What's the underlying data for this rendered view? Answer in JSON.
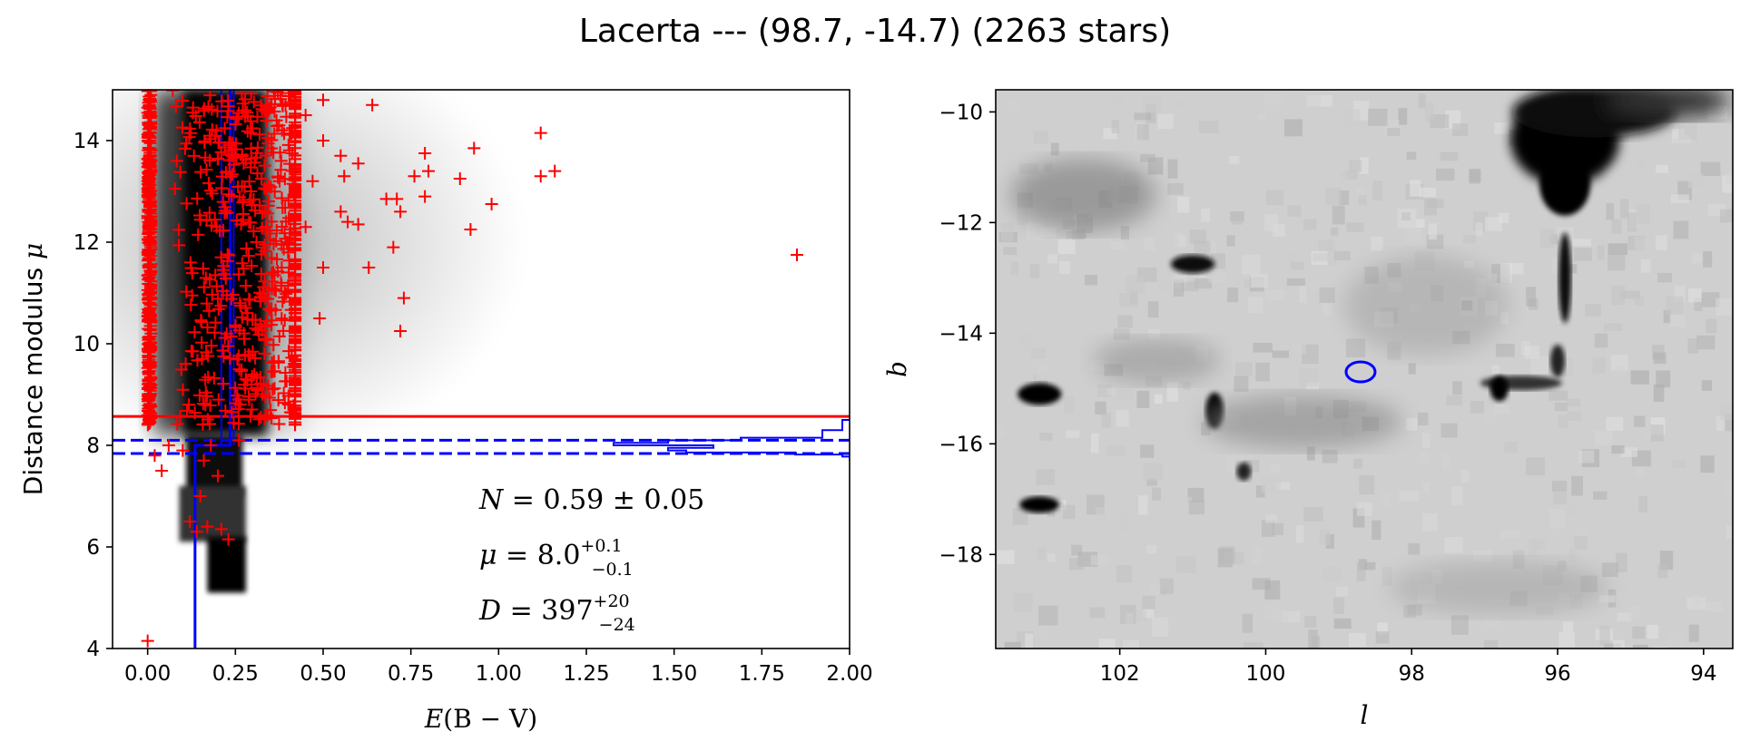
{
  "figure": {
    "title": "Lacerta --- (98.7, -14.7) (2263 stars)"
  },
  "chart_data": [
    {
      "type": "scatter",
      "panel": "left",
      "xlabel_parts": [
        "E",
        "(B − V)"
      ],
      "ylabel_parts": [
        "Distance modulus ",
        "μ"
      ],
      "xlim": [
        -0.1,
        2.0
      ],
      "ylim": [
        4,
        15
      ],
      "xticks": [
        0.0,
        0.25,
        0.5,
        0.75,
        1.0,
        1.25,
        1.5,
        1.75,
        2.0
      ],
      "xtick_labels": [
        "0.00",
        "0.25",
        "0.50",
        "0.75",
        "1.00",
        "1.25",
        "1.50",
        "1.75",
        "2.00"
      ],
      "yticks": [
        4,
        6,
        8,
        10,
        12,
        14
      ],
      "ytick_labels": [
        "4",
        "6",
        "8",
        "10",
        "12",
        "14"
      ],
      "colors": {
        "points": "#ff0000",
        "fit": "#0000ff",
        "cut": "#ff0000"
      },
      "density_background": "grayscale",
      "points_description": "red plus markers, dense cluster at E(B-V) 0-0.4 for mu 8.3-15",
      "sample_points": [
        {
          "x": 1.85,
          "y": 11.75
        },
        {
          "x": 1.12,
          "y": 14.15
        },
        {
          "x": 1.16,
          "y": 13.4
        },
        {
          "x": 1.12,
          "y": 13.3
        },
        {
          "x": 0.93,
          "y": 13.85
        },
        {
          "x": 0.89,
          "y": 13.25
        },
        {
          "x": 0.79,
          "y": 13.75
        },
        {
          "x": 0.8,
          "y": 13.4
        },
        {
          "x": 0.79,
          "y": 12.9
        },
        {
          "x": 0.76,
          "y": 13.3
        },
        {
          "x": 0.71,
          "y": 12.85
        },
        {
          "x": 0.72,
          "y": 12.6
        },
        {
          "x": 0.68,
          "y": 12.85
        },
        {
          "x": 0.98,
          "y": 12.75
        },
        {
          "x": 0.92,
          "y": 12.25
        },
        {
          "x": 0.7,
          "y": 11.9
        },
        {
          "x": 0.63,
          "y": 11.5
        },
        {
          "x": 0.5,
          "y": 11.5
        },
        {
          "x": 0.73,
          "y": 10.9
        },
        {
          "x": 0.72,
          "y": 10.25
        },
        {
          "x": 0.49,
          "y": 10.5
        },
        {
          "x": 0.57,
          "y": 12.4
        },
        {
          "x": 0.6,
          "y": 12.35
        },
        {
          "x": 0.55,
          "y": 12.6
        },
        {
          "x": 0.64,
          "y": 14.7
        },
        {
          "x": 0.5,
          "y": 14.8
        },
        {
          "x": 0.45,
          "y": 14.5
        },
        {
          "x": 0.5,
          "y": 14.0
        },
        {
          "x": 0.55,
          "y": 13.7
        },
        {
          "x": 0.6,
          "y": 13.55
        },
        {
          "x": 0.56,
          "y": 13.3
        },
        {
          "x": 0.47,
          "y": 13.2
        },
        {
          "x": 0.42,
          "y": 12.9
        },
        {
          "x": 0.45,
          "y": 12.3
        },
        {
          "x": 0.4,
          "y": 11.8
        },
        {
          "x": 0.38,
          "y": 11.2
        },
        {
          "x": 0.0,
          "y": 4.15
        },
        {
          "x": 0.04,
          "y": 7.5
        },
        {
          "x": 0.02,
          "y": 7.8
        },
        {
          "x": 0.06,
          "y": 8.0
        },
        {
          "x": 0.12,
          "y": 6.5
        },
        {
          "x": 0.14,
          "y": 6.3
        },
        {
          "x": 0.15,
          "y": 7.0
        },
        {
          "x": 0.17,
          "y": 6.4
        },
        {
          "x": 0.21,
          "y": 6.35
        },
        {
          "x": 0.23,
          "y": 6.15
        },
        {
          "x": 0.2,
          "y": 7.4
        },
        {
          "x": 0.16,
          "y": 7.7
        },
        {
          "x": 0.1,
          "y": 7.9
        },
        {
          "x": 0.18,
          "y": 8.0
        },
        {
          "x": 0.26,
          "y": 8.1
        }
      ],
      "cluster_rows": {
        "mu_min": 8.4,
        "mu_max": 15.0,
        "x_min": 0.0,
        "x_max": 0.42
      },
      "lines": {
        "red_horizontal": 8.57,
        "blue_dashed": [
          7.84,
          8.1
        ],
        "blue_step_left_x": 0.135,
        "blue_step_right_x": 0.235,
        "blue_step_mu": 8.0,
        "blue_band_x": [
          0.21,
          0.245
        ]
      },
      "annotations": [
        {
          "id": "N",
          "parts": [
            "N",
            " = 0.59 ± 0.05"
          ]
        },
        {
          "id": "mu",
          "parts": [
            "μ",
            " = 8.0",
            "+0.1",
            "−0.1"
          ]
        },
        {
          "id": "D",
          "parts": [
            "D",
            " = 397",
            "+20",
            "−24"
          ]
        }
      ]
    },
    {
      "type": "heatmap",
      "panel": "right",
      "xlabel": "l",
      "ylabel": "b",
      "xlim": [
        103.7,
        93.6
      ],
      "ylim": [
        -19.7,
        -9.6
      ],
      "xticks": [
        102,
        100,
        98,
        96,
        94
      ],
      "xtick_labels": [
        "102",
        "100",
        "98",
        "96",
        "94"
      ],
      "yticks": [
        -10,
        -12,
        -14,
        -16,
        -18
      ],
      "ytick_labels": [
        "−10",
        "−12",
        "−14",
        "−16",
        "−18"
      ],
      "colormap": "gray_r",
      "marker": {
        "shape": "ellipse",
        "l": 98.7,
        "b": -14.7,
        "color": "#0000ff"
      }
    }
  ]
}
